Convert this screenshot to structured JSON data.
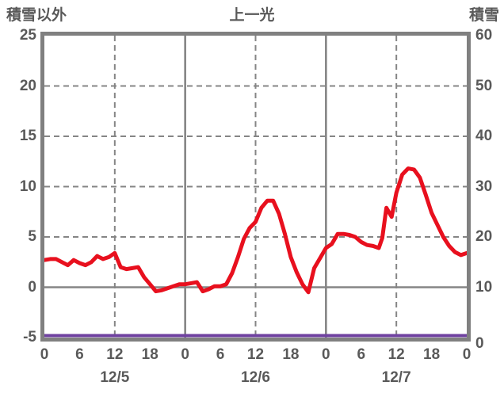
{
  "header": {
    "left_axis_label": "積雪以外",
    "title": "上一光",
    "right_axis_label": "積雪"
  },
  "colors": {
    "main_line": "#e8101e",
    "snow_line": "#6f42a0",
    "frame": "#808080",
    "grid": "#858585",
    "text": "#595959",
    "background": "#ffffff"
  },
  "chart_data": {
    "type": "line",
    "title": "上一光",
    "left_axis": {
      "label": "積雪以外",
      "min": -5,
      "max": 25,
      "ticks": [
        25,
        20,
        15,
        10,
        5,
        0,
        -5
      ]
    },
    "right_axis": {
      "label": "積雪",
      "min": 0,
      "max": 60,
      "ticks": [
        60,
        50,
        40,
        30,
        20,
        10,
        0
      ]
    },
    "x_axis": {
      "hours_total": 72,
      "tick_labels": [
        "0",
        "6",
        "12",
        "18",
        "0",
        "6",
        "12",
        "18",
        "0",
        "6",
        "12",
        "18",
        "0"
      ],
      "tick_hours": [
        0,
        6,
        12,
        18,
        24,
        30,
        36,
        42,
        48,
        54,
        60,
        66,
        72
      ],
      "dates": [
        {
          "label": "12/5",
          "center_hour": 12
        },
        {
          "label": "12/6",
          "center_hour": 36
        },
        {
          "label": "12/7",
          "center_hour": 60
        }
      ]
    },
    "grid": {
      "h_dashed_values": [
        20,
        15,
        10,
        5
      ],
      "h_solid_values": [
        0
      ],
      "v_dashed_hours": [
        12,
        36,
        60
      ],
      "v_solid_hours": [
        24,
        48
      ]
    },
    "series": [
      {
        "name": "積雪以外",
        "axis": "left",
        "color": "#e8101e",
        "stroke_width": 5,
        "points": [
          [
            0,
            2.7
          ],
          [
            1,
            2.8
          ],
          [
            2,
            2.8
          ],
          [
            3,
            2.5
          ],
          [
            4,
            2.2
          ],
          [
            5,
            2.7
          ],
          [
            6,
            2.4
          ],
          [
            7,
            2.2
          ],
          [
            8,
            2.5
          ],
          [
            9,
            3.1
          ],
          [
            10,
            2.8
          ],
          [
            11,
            3.0
          ],
          [
            12,
            3.4
          ],
          [
            13,
            2.0
          ],
          [
            14,
            1.8
          ],
          [
            15,
            1.9
          ],
          [
            16,
            2.0
          ],
          [
            17,
            1.0
          ],
          [
            18,
            0.3
          ],
          [
            19,
            -0.4
          ],
          [
            20,
            -0.3
          ],
          [
            21,
            -0.1
          ],
          [
            22,
            0.1
          ],
          [
            23,
            0.3
          ],
          [
            24,
            0.3
          ],
          [
            25,
            0.4
          ],
          [
            26,
            0.5
          ],
          [
            27,
            -0.4
          ],
          [
            28,
            -0.2
          ],
          [
            29,
            0.1
          ],
          [
            30,
            0.1
          ],
          [
            31,
            0.3
          ],
          [
            32,
            1.4
          ],
          [
            33,
            3.0
          ],
          [
            34,
            4.8
          ],
          [
            35,
            5.9
          ],
          [
            36,
            6.5
          ],
          [
            37,
            7.9
          ],
          [
            38,
            8.6
          ],
          [
            39,
            8.6
          ],
          [
            40,
            7.3
          ],
          [
            41,
            5.3
          ],
          [
            42,
            3.0
          ],
          [
            43,
            1.5
          ],
          [
            44,
            0.3
          ],
          [
            45,
            -0.5
          ],
          [
            46,
            1.9
          ],
          [
            47,
            2.9
          ],
          [
            48,
            3.9
          ],
          [
            49,
            4.3
          ],
          [
            50,
            5.3
          ],
          [
            51,
            5.3
          ],
          [
            52,
            5.2
          ],
          [
            53,
            5.0
          ],
          [
            54,
            4.5
          ],
          [
            55,
            4.2
          ],
          [
            56,
            4.1
          ],
          [
            57,
            3.9
          ],
          [
            57.6,
            4.9
          ],
          [
            58.3,
            7.9
          ],
          [
            59.2,
            7.0
          ],
          [
            60,
            9.4
          ],
          [
            61,
            11.2
          ],
          [
            62,
            11.8
          ],
          [
            63,
            11.7
          ],
          [
            64,
            10.9
          ],
          [
            65,
            9.2
          ],
          [
            66,
            7.4
          ],
          [
            67,
            6.2
          ],
          [
            68,
            5.0
          ],
          [
            69,
            4.1
          ],
          [
            70,
            3.5
          ],
          [
            71,
            3.2
          ],
          [
            72,
            3.4
          ]
        ]
      },
      {
        "name": "積雪",
        "axis": "right",
        "color": "#6f42a0",
        "stroke_width": 4,
        "points": [
          [
            0,
            0
          ],
          [
            72,
            0
          ]
        ]
      }
    ]
  }
}
